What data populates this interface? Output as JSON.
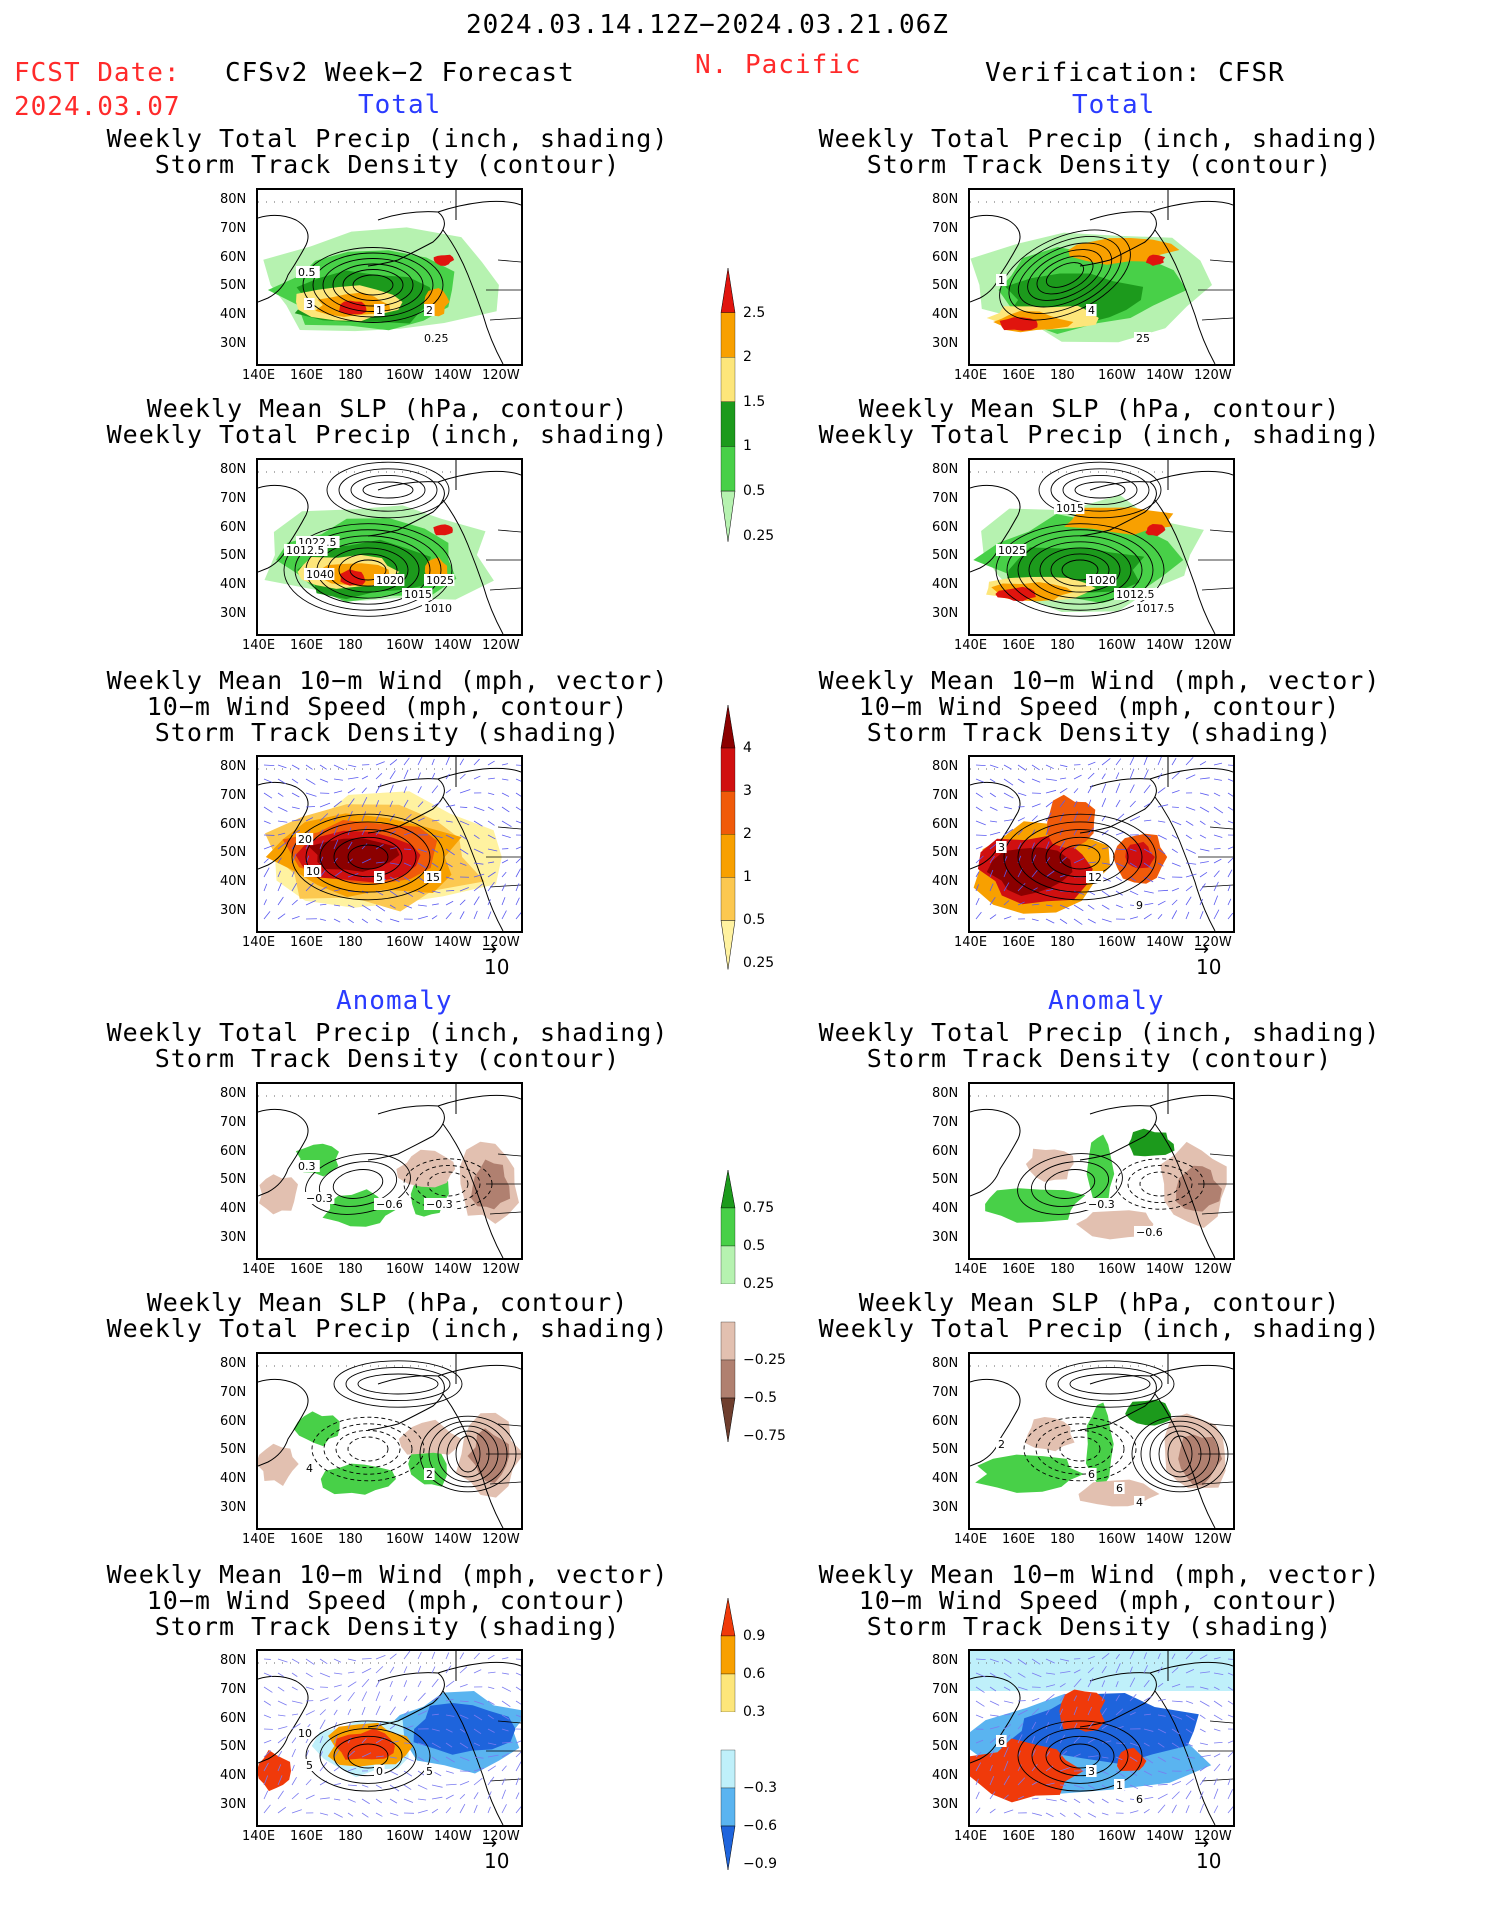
{
  "header": {
    "date_range": "2024.03.14.12Z−2024.03.21.06Z",
    "fcst_date_label": "FCST Date:",
    "fcst_date_value": "2024.03.07",
    "forecast_label": "CFSv2 Week−2 Forecast",
    "region": "N. Pacific",
    "verification_label": "Verification: CFSR"
  },
  "sections": {
    "total": "Total",
    "anomaly": "Anomaly"
  },
  "panel_titles": {
    "precip_storm": [
      "Weekly Total Precip (inch, shading)",
      "Storm Track Density (contour)"
    ],
    "slp_precip": [
      "Weekly Mean SLP (hPa, contour)",
      "Weekly Total Precip (inch, shading)"
    ],
    "wind_storm": [
      "Weekly Mean 10−m Wind (mph, vector)",
      "10−m Wind Speed (mph, contour)",
      "Storm Track Density (shading)"
    ]
  },
  "axes": {
    "lat_ticks": [
      "80N",
      "70N",
      "60N",
      "50N",
      "40N",
      "30N"
    ],
    "lon_ticks": [
      "140E",
      "160E",
      "180",
      "160W",
      "140W",
      "120W"
    ]
  },
  "vector_reference": "10",
  "colorbars": {
    "precip_total": {
      "labels": [
        "2.5",
        "2",
        "1.5",
        "1",
        "0.5",
        "0.25"
      ],
      "colors": [
        "#e0140e",
        "#f8a000",
        "#fde67a",
        "#1c9a1c",
        "#48d048",
        "#b6f2b0"
      ]
    },
    "storm_total": {
      "labels": [
        "4",
        "3",
        "2",
        "1",
        "0.5",
        "0.25"
      ],
      "colors": [
        "#8b0000",
        "#d01010",
        "#f05a0a",
        "#f8a000",
        "#fcc850",
        "#fff2a0"
      ]
    },
    "precip_anom": {
      "labels": [
        "0.75",
        "0.5",
        "0.25",
        "−0.25",
        "−0.5",
        "−0.75"
      ],
      "colors": [
        "#1c9a1c",
        "#48d048",
        "#b6f2b0",
        "#ffffff",
        "#e2c0b0",
        "#b08070",
        "#6e3e2e"
      ]
    },
    "storm_anom": {
      "labels": [
        "0.9",
        "0.6",
        "0.3",
        "−0.3",
        "−0.6",
        "−0.9"
      ],
      "colors": [
        "#f03a0a",
        "#f8a000",
        "#fde67a",
        "#ffffff",
        "#bff0fa",
        "#5ab4f0",
        "#1e64dc"
      ]
    }
  },
  "contour_labels": {
    "r1_left": [
      "3",
      "2",
      "0.5",
      "1",
      "0.25"
    ],
    "r1_right": [
      "4",
      "25",
      "1"
    ],
    "r2_left": [
      "1040",
      "1025",
      "1022.5",
      "1020",
      "1010",
      "1012.5",
      "1015"
    ],
    "r2_right": [
      "1020",
      "1017.5",
      "1025",
      "1012.5",
      "1015"
    ],
    "r3_left": [
      "10",
      "15",
      "20",
      "5"
    ],
    "r3_right": [
      "12",
      "9",
      "3"
    ],
    "r4_left": [
      "−0.3",
      "−0.3",
      "0.3",
      "−0.6"
    ],
    "r4_right": [
      "−0.3",
      "−0.6"
    ],
    "r5_left": [
      "4",
      "2"
    ],
    "r5_right": [
      "6",
      "4",
      "2",
      "6"
    ],
    "r6_left": [
      "5",
      "5",
      "10",
      "0"
    ],
    "r6_right": [
      "3",
      "6",
      "6",
      "1"
    ]
  }
}
